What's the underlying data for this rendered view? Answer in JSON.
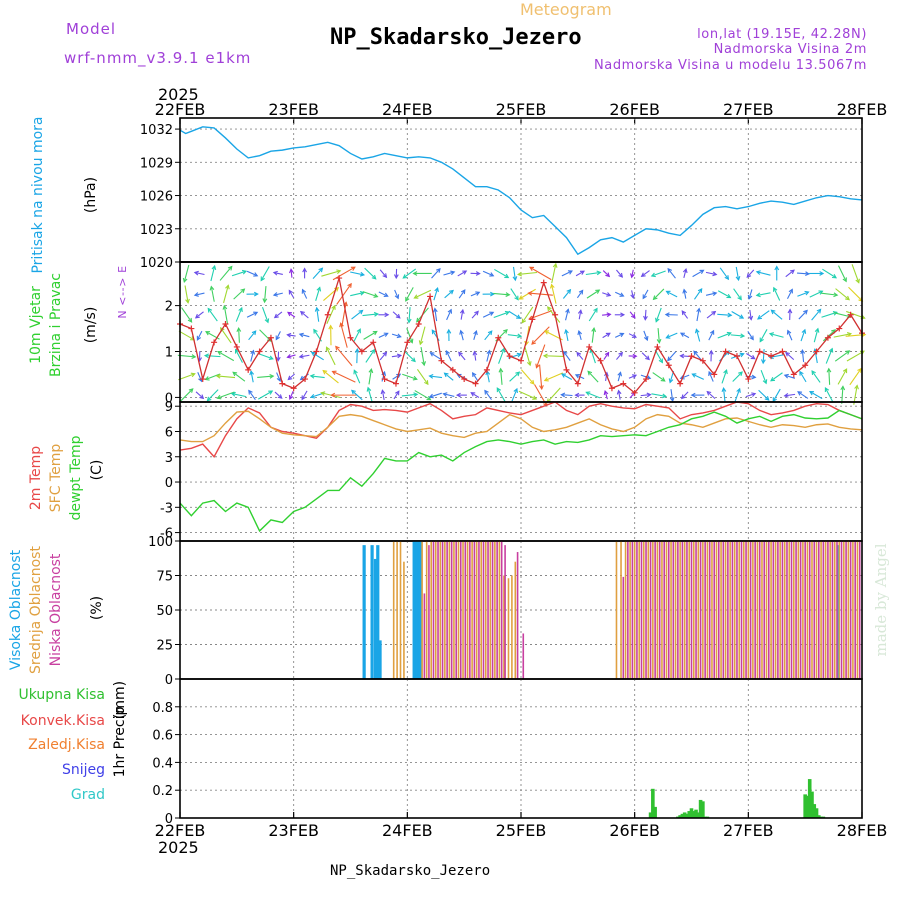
{
  "header": {
    "model_label": "Model",
    "model_name": "wrf-nmm_v3.9.1 e1km",
    "title": "NP_Skadarsko_Jezero",
    "subtitle": "Meteogram",
    "location": "lon,lat (19.15E, 42.28N)",
    "elevation": "Nadmorska Visina 2m",
    "model_elevation": "Nadmorska Visina u modelu 13.5067m",
    "year": "2025"
  },
  "footer": {
    "station": "NP_Skadarsko_Jezero",
    "credit": "made by Angel",
    "year": "2025"
  },
  "colors": {
    "pressure": "#1aa5e6",
    "temp2m": "#e84848",
    "sfc_temp": "#e0a040",
    "dewpoint": "#30d030",
    "cloud_high": "#1aa5e6",
    "cloud_mid": "#e0a040",
    "cloud_low": "#c83fa0",
    "precip_total": "#30c030",
    "precip_conv": "#e84848",
    "precip_frozen": "#f08030",
    "precip_snow": "#4040e8",
    "precip_hail": "#30c8c8",
    "label_purple": "#a040d8"
  },
  "chart_data": [
    {
      "type": "line",
      "name": "pressure",
      "ylabel": "Pritisak na nivou mora",
      "unit": "(hPa)",
      "ylim": [
        1020,
        1033
      ],
      "yticks": [
        1020,
        1023,
        1026,
        1029,
        1032
      ],
      "x_day": [
        0,
        0.05,
        0.1,
        0.2,
        0.3,
        0.4,
        0.5,
        0.6,
        0.7,
        0.8,
        0.9,
        1.0,
        1.1,
        1.2,
        1.3,
        1.4,
        1.5,
        1.6,
        1.7,
        1.8,
        1.9,
        2.0,
        2.1,
        2.2,
        2.3,
        2.4,
        2.5,
        2.6,
        2.7,
        2.8,
        2.9,
        3.0,
        3.1,
        3.2,
        3.3,
        3.4,
        3.5,
        3.6,
        3.7,
        3.8,
        3.9,
        4.0,
        4.1,
        4.2,
        4.3,
        4.4,
        4.5,
        4.6,
        4.7,
        4.8,
        4.9,
        5.0,
        5.1,
        5.2,
        5.3,
        5.4,
        5.5,
        5.6,
        5.7,
        5.8,
        5.9,
        6.0
      ],
      "values": [
        1031.9,
        1031.6,
        1031.8,
        1032.2,
        1032.1,
        1031.2,
        1030.2,
        1029.4,
        1029.6,
        1030.0,
        1030.1,
        1030.3,
        1030.4,
        1030.6,
        1030.8,
        1030.5,
        1029.8,
        1029.3,
        1029.5,
        1029.8,
        1029.6,
        1029.4,
        1029.5,
        1029.4,
        1029.0,
        1028.4,
        1027.6,
        1026.8,
        1026.8,
        1026.5,
        1025.8,
        1024.7,
        1024.0,
        1024.2,
        1023.2,
        1022.2,
        1020.7,
        1021.3,
        1022.0,
        1022.2,
        1021.8,
        1022.4,
        1023.0,
        1022.9,
        1022.6,
        1022.4,
        1023.3,
        1024.3,
        1024.9,
        1025.0,
        1024.8,
        1025.0,
        1025.3,
        1025.5,
        1025.4,
        1025.2,
        1025.5,
        1025.8,
        1026.0,
        1025.9,
        1025.7,
        1025.6
      ]
    },
    {
      "type": "line",
      "name": "wind",
      "ylabel": "10m Vjetar",
      "ylabel2": "Brzina i Pravac",
      "unit": "(m/s)",
      "compass": "N <--> E",
      "ylim": [
        -0.1,
        2.95
      ],
      "yticks": [
        0,
        1,
        2
      ],
      "x_day": [
        0,
        0.1,
        0.2,
        0.3,
        0.4,
        0.5,
        0.6,
        0.7,
        0.8,
        0.9,
        1.0,
        1.1,
        1.2,
        1.3,
        1.4,
        1.5,
        1.6,
        1.7,
        1.8,
        1.9,
        2.0,
        2.1,
        2.2,
        2.3,
        2.4,
        2.5,
        2.6,
        2.7,
        2.8,
        2.9,
        3.0,
        3.1,
        3.2,
        3.3,
        3.4,
        3.5,
        3.6,
        3.7,
        3.8,
        3.9,
        4.0,
        4.1,
        4.2,
        4.3,
        4.4,
        4.5,
        4.6,
        4.7,
        4.8,
        4.9,
        5.0,
        5.1,
        5.2,
        5.3,
        5.4,
        5.5,
        5.6,
        5.7,
        5.8,
        5.9,
        6.0
      ],
      "speed": [
        1.6,
        1.5,
        0.4,
        1.2,
        1.6,
        1.1,
        0.6,
        1.0,
        1.3,
        0.3,
        0.2,
        0.4,
        1.0,
        1.8,
        2.6,
        1.3,
        1.0,
        1.2,
        0.4,
        0.3,
        1.2,
        1.6,
        2.2,
        0.8,
        0.6,
        0.4,
        0.3,
        0.6,
        1.3,
        0.9,
        0.8,
        1.7,
        2.5,
        1.8,
        0.6,
        0.3,
        1.1,
        0.8,
        0.2,
        0.3,
        0.1,
        0.4,
        1.1,
        0.7,
        0.3,
        0.9,
        0.8,
        0.5,
        1.0,
        0.9,
        0.4,
        1.0,
        0.9,
        1.0,
        0.5,
        0.7,
        1.0,
        1.3,
        1.5,
        1.8,
        1.4
      ],
      "direction_deg": [
        330,
        45,
        120,
        200,
        250,
        270,
        300,
        20,
        60,
        120,
        180,
        210,
        240,
        260,
        270,
        280,
        300,
        320,
        350,
        20,
        60,
        120,
        200,
        240,
        260,
        270,
        290,
        300,
        330,
        10,
        40,
        90,
        150,
        210,
        250,
        270,
        280,
        300,
        320,
        350,
        30,
        60,
        100,
        160,
        200,
        240,
        270,
        300,
        330,
        20,
        60,
        110,
        160,
        210,
        250,
        280,
        300,
        320,
        340,
        10,
        40
      ]
    },
    {
      "type": "line",
      "name": "temperature",
      "unit": "(C)",
      "ylim": [
        -7,
        9.5
      ],
      "yticks": [
        -6,
        -3,
        0,
        3,
        6,
        9
      ],
      "x_day": [
        0,
        0.1,
        0.2,
        0.3,
        0.4,
        0.5,
        0.6,
        0.7,
        0.8,
        0.9,
        1.0,
        1.1,
        1.2,
        1.3,
        1.4,
        1.5,
        1.6,
        1.7,
        1.8,
        1.9,
        2.0,
        2.1,
        2.2,
        2.3,
        2.4,
        2.5,
        2.6,
        2.7,
        2.8,
        2.9,
        3.0,
        3.1,
        3.2,
        3.3,
        3.4,
        3.5,
        3.6,
        3.7,
        3.8,
        3.9,
        4.0,
        4.1,
        4.2,
        4.3,
        4.4,
        4.5,
        4.6,
        4.7,
        4.8,
        4.9,
        5.0,
        5.1,
        5.2,
        5.3,
        5.4,
        5.5,
        5.6,
        5.7,
        5.8,
        5.9,
        6.0
      ],
      "series": [
        {
          "name": "2m Temp",
          "values": [
            3.8,
            4.0,
            4.5,
            3.0,
            5.5,
            7.5,
            8.8,
            8.2,
            6.5,
            6.0,
            5.8,
            5.5,
            5.2,
            6.5,
            8.5,
            9.2,
            9.0,
            8.5,
            8.6,
            8.5,
            8.3,
            8.8,
            9.3,
            8.5,
            7.5,
            7.8,
            8.0,
            8.8,
            8.5,
            8.2,
            8.0,
            8.5,
            9.0,
            9.5,
            8.5,
            8.0,
            9.0,
            9.3,
            9.0,
            8.8,
            8.7,
            9.2,
            9.0,
            8.8,
            7.5,
            8.0,
            8.2,
            8.5,
            9.0,
            9.5,
            9.3,
            8.5,
            8.0,
            8.2,
            8.5,
            9.0,
            9.3,
            9.2,
            8.5,
            8.0,
            7.5
          ]
        },
        {
          "name": "SFC Temp",
          "values": [
            5.0,
            4.8,
            4.8,
            5.5,
            7.0,
            8.3,
            8.4,
            7.5,
            6.5,
            5.8,
            5.6,
            5.5,
            5.4,
            6.5,
            7.8,
            8.0,
            7.8,
            7.3,
            6.8,
            6.3,
            6.0,
            6.2,
            6.4,
            5.8,
            5.5,
            5.3,
            5.8,
            6.0,
            7.0,
            8.0,
            7.5,
            6.5,
            6.0,
            6.2,
            6.5,
            7.0,
            7.5,
            6.8,
            6.3,
            6.0,
            6.5,
            7.5,
            8.0,
            7.8,
            7.0,
            6.8,
            6.5,
            7.0,
            7.5,
            7.6,
            7.2,
            6.8,
            6.5,
            6.8,
            6.7,
            6.5,
            6.8,
            6.9,
            6.5,
            6.3,
            6.2
          ]
        },
        {
          "name": "dewpt Temp",
          "values": [
            -2.5,
            -4.0,
            -2.5,
            -2.2,
            -3.5,
            -2.5,
            -3.0,
            -5.8,
            -4.5,
            -4.8,
            -3.5,
            -3.0,
            -2.0,
            -1.0,
            -1.0,
            0.5,
            -0.5,
            1.0,
            2.8,
            2.5,
            2.5,
            3.5,
            3.0,
            3.2,
            2.5,
            3.5,
            4.2,
            4.8,
            5.0,
            4.8,
            4.5,
            4.8,
            5.0,
            4.5,
            4.8,
            4.7,
            5.0,
            5.5,
            5.4,
            5.5,
            5.6,
            5.5,
            6.0,
            6.5,
            6.8,
            7.5,
            7.8,
            8.3,
            7.8,
            7.0,
            7.5,
            7.8,
            7.2,
            7.8,
            8.0,
            7.6,
            7.5,
            7.6,
            8.5,
            8.0,
            7.5
          ]
        }
      ]
    },
    {
      "type": "bar",
      "name": "clouds",
      "unit": "(%)",
      "ylim": [
        0,
        100
      ],
      "yticks": [
        0,
        25,
        50,
        75,
        100
      ],
      "series": [
        {
          "name": "Visoka Oblacnost",
          "x_day": [
            1.62,
            1.69,
            1.72,
            1.74,
            1.76,
            2.06,
            2.07,
            2.08,
            2.09,
            2.1,
            2.11,
            2.12,
            5.79
          ],
          "values": [
            97,
            97,
            87,
            97,
            28,
            100,
            100,
            100,
            100,
            100,
            100,
            100,
            97
          ]
        },
        {
          "name": "Srednja Oblacnost",
          "x_day": [
            1.88,
            1.91,
            1.94,
            1.97,
            2.13,
            2.17,
            2.21,
            2.25,
            2.29,
            2.33,
            2.37,
            2.41,
            2.45,
            2.49,
            2.53,
            2.57,
            2.61,
            2.65,
            2.69,
            2.73,
            2.77,
            2.81,
            2.85,
            2.89,
            2.92,
            2.95,
            3.84,
            3.88,
            3.92,
            3.96,
            4.0,
            4.04,
            4.08,
            4.12,
            4.16,
            4.2,
            4.24,
            4.28,
            4.32,
            4.36,
            4.4,
            4.44,
            4.48,
            4.52,
            4.56,
            4.6,
            4.64,
            4.68,
            4.72,
            4.76,
            4.8,
            4.84,
            4.88,
            4.92,
            4.96,
            5.0,
            5.04,
            5.08,
            5.12,
            5.16,
            5.2,
            5.24,
            5.28,
            5.32,
            5.36,
            5.4,
            5.44,
            5.48,
            5.52,
            5.56,
            5.6,
            5.64,
            5.68,
            5.72,
            5.76,
            5.8,
            5.84,
            5.88,
            5.92,
            5.96
          ],
          "values": [
            100,
            100,
            100,
            85,
            100,
            100,
            100,
            100,
            100,
            100,
            100,
            100,
            100,
            100,
            100,
            100,
            100,
            100,
            100,
            100,
            100,
            100,
            75,
            73,
            75,
            85,
            100,
            100,
            100,
            100,
            100,
            100,
            100,
            100,
            100,
            100,
            100,
            100,
            100,
            100,
            100,
            100,
            100,
            100,
            100,
            100,
            100,
            100,
            100,
            100,
            100,
            100,
            100,
            100,
            100,
            100,
            100,
            100,
            100,
            100,
            100,
            100,
            100,
            100,
            100,
            100,
            100,
            100,
            100,
            100,
            100,
            100,
            100,
            100,
            100,
            100,
            100,
            100,
            100,
            100
          ]
        },
        {
          "name": "Niska Oblacnost",
          "x_day": [
            2.15,
            2.19,
            2.23,
            2.27,
            2.31,
            2.35,
            2.39,
            2.43,
            2.47,
            2.51,
            2.55,
            2.59,
            2.63,
            2.67,
            2.71,
            2.75,
            2.79,
            2.83,
            2.86,
            2.97,
            3.02,
            3.9,
            3.94,
            3.98,
            4.02,
            4.06,
            4.1,
            4.14,
            4.18,
            4.22,
            4.26,
            4.3,
            4.34,
            4.38,
            4.42,
            4.46,
            4.5,
            4.54,
            4.58,
            4.62,
            4.66,
            4.7,
            4.74,
            4.78,
            4.82,
            4.86,
            4.9,
            4.94,
            4.98,
            5.02,
            5.06,
            5.1,
            5.14,
            5.18,
            5.22,
            5.26,
            5.3,
            5.34,
            5.38,
            5.42,
            5.46,
            5.5,
            5.54,
            5.58,
            5.62,
            5.66,
            5.7,
            5.74,
            5.78,
            5.82,
            5.86,
            5.9,
            5.94,
            5.98
          ],
          "values": [
            62,
            97,
            100,
            100,
            100,
            100,
            100,
            100,
            100,
            100,
            100,
            100,
            100,
            100,
            100,
            100,
            100,
            100,
            97,
            92,
            33,
            74,
            100,
            100,
            100,
            100,
            100,
            100,
            100,
            100,
            100,
            100,
            100,
            100,
            100,
            100,
            100,
            100,
            100,
            100,
            100,
            100,
            100,
            100,
            100,
            100,
            100,
            100,
            100,
            100,
            100,
            100,
            100,
            100,
            100,
            100,
            100,
            100,
            100,
            100,
            100,
            100,
            100,
            100,
            100,
            100,
            100,
            100,
            100,
            100,
            100,
            100,
            100,
            100
          ]
        }
      ]
    },
    {
      "type": "bar",
      "name": "precipitation",
      "ylabel": "1hr Precip",
      "unit": "(mm)",
      "ylim": [
        0,
        1.0
      ],
      "yticks": [
        0,
        0.2,
        0.4,
        0.6,
        0.8
      ],
      "series": [
        {
          "name": "Ukupna Kisa",
          "x_day": [
            4.14,
            4.16,
            4.18,
            4.38,
            4.4,
            4.42,
            4.44,
            4.46,
            4.48,
            4.5,
            4.52,
            4.54,
            4.56,
            4.58,
            4.6,
            4.62,
            4.64,
            5.5,
            5.52,
            5.54,
            5.56,
            5.58,
            5.6,
            5.62,
            5.64,
            5.66
          ],
          "values": [
            0.04,
            0.21,
            0.08,
            0.01,
            0.02,
            0.03,
            0.04,
            0.03,
            0.05,
            0.07,
            0.05,
            0.06,
            0.04,
            0.13,
            0.12,
            0.01,
            0.01,
            0.17,
            0.16,
            0.28,
            0.19,
            0.1,
            0.07,
            0.02,
            0.01,
            0.01
          ]
        },
        {
          "name": "Konvek.Kisa",
          "values": []
        },
        {
          "name": "Zaledj.Kisa",
          "values": []
        },
        {
          "name": "Snijeg",
          "values": []
        },
        {
          "name": "Grad",
          "values": []
        }
      ]
    }
  ],
  "x_axis": {
    "type": "date",
    "start": "2025-02-22",
    "tick_labels": [
      "22FEB",
      "23FEB",
      "24FEB",
      "25FEB",
      "26FEB",
      "27FEB",
      "28FEB"
    ]
  }
}
